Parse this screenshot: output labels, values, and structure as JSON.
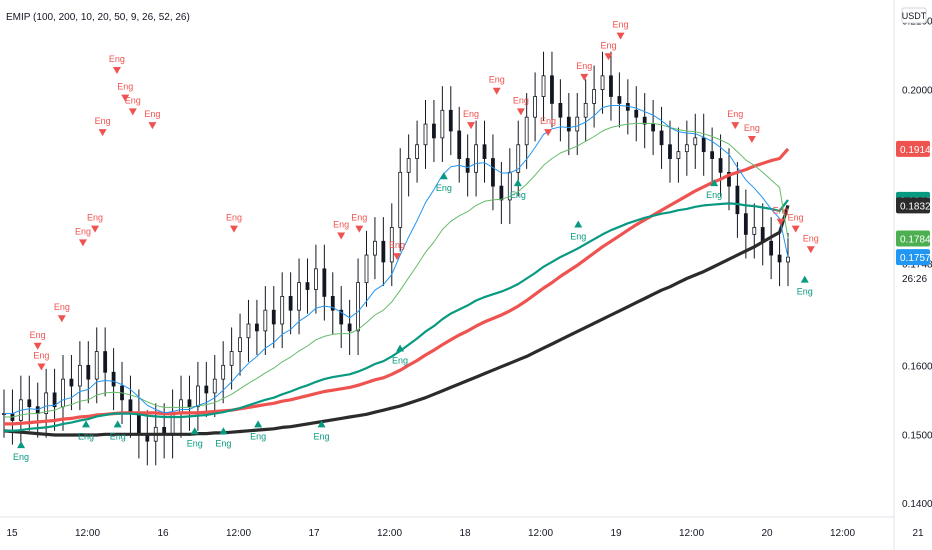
{
  "header": {
    "indicator": "EMIP (100, 200, 10, 20, 50, 9, 26, 52, 26)",
    "currency": "USDT"
  },
  "chart_data": {
    "type": "candlestick",
    "x_ticks": [
      "15",
      "12:00",
      "16",
      "12:00",
      "17",
      "12:00",
      "18",
      "12:00",
      "19",
      "12:00",
      "20",
      "12:00",
      "21"
    ],
    "y_ticks": [
      0.21,
      0.2,
      0.16,
      0.15,
      0.14
    ],
    "y_tick_labels": [
      "0.2100",
      "0.2000",
      "0.1600",
      "0.1500",
      "0.1400"
    ],
    "ylim": [
      0.138,
      0.213
    ],
    "price_badges": [
      {
        "label": "0.1914",
        "value": 0.1914,
        "color": "#ef5350"
      },
      {
        "label": "0.1840",
        "value": 0.184,
        "color": "#089981"
      },
      {
        "label": "0.1832",
        "value": 0.1832,
        "color": "#2b2b2b"
      },
      {
        "label": "0.1784",
        "value": 0.1784,
        "color": "#4caf50"
      },
      {
        "label": "0.1757",
        "value": 0.1757,
        "color": "#2196f3"
      }
    ],
    "extra_axis_labels": [
      {
        "label": "0.1748",
        "value": 0.1748
      },
      {
        "label": "26:26",
        "value": 0.1727
      }
    ],
    "signal_label": "Eng",
    "series": {
      "close": [
        0.153,
        0.152,
        0.155,
        0.154,
        0.153,
        0.156,
        0.154,
        0.158,
        0.157,
        0.16,
        0.158,
        0.162,
        0.159,
        0.157,
        0.155,
        0.153,
        0.15,
        0.149,
        0.151,
        0.15,
        0.153,
        0.155,
        0.154,
        0.157,
        0.156,
        0.158,
        0.16,
        0.162,
        0.164,
        0.166,
        0.165,
        0.168,
        0.166,
        0.17,
        0.168,
        0.172,
        0.171,
        0.174,
        0.17,
        0.168,
        0.166,
        0.165,
        0.172,
        0.176,
        0.178,
        0.175,
        0.18,
        0.188,
        0.19,
        0.192,
        0.195,
        0.193,
        0.197,
        0.194,
        0.19,
        0.188,
        0.192,
        0.19,
        0.186,
        0.184,
        0.188,
        0.192,
        0.196,
        0.199,
        0.202,
        0.198,
        0.196,
        0.194,
        0.196,
        0.198,
        0.2,
        0.202,
        0.199,
        0.198,
        0.197,
        0.196,
        0.195,
        0.194,
        0.192,
        0.19,
        0.191,
        0.192,
        0.193,
        0.191,
        0.19,
        0.188,
        0.186,
        0.182,
        0.179,
        0.18,
        0.178,
        0.176,
        0.175,
        0.1757
      ],
      "ema10": [
        0.153,
        0.153,
        0.1535,
        0.1537,
        0.1536,
        0.1541,
        0.1542,
        0.155,
        0.1553,
        0.1562,
        0.1565,
        0.1576,
        0.1578,
        0.1577,
        0.1572,
        0.1565,
        0.1554,
        0.1542,
        0.1536,
        0.1531,
        0.1533,
        0.1536,
        0.1536,
        0.1542,
        0.1546,
        0.1553,
        0.1564,
        0.1576,
        0.159,
        0.1603,
        0.1613,
        0.1625,
        0.1633,
        0.1645,
        0.1652,
        0.1664,
        0.1672,
        0.1683,
        0.1686,
        0.1684,
        0.1677,
        0.1669,
        0.1678,
        0.1693,
        0.1709,
        0.1717,
        0.1732,
        0.176,
        0.1786,
        0.181,
        0.1836,
        0.1855,
        0.1876,
        0.1888,
        0.189,
        0.1887,
        0.1893,
        0.1894,
        0.1887,
        0.1879,
        0.1879,
        0.1885,
        0.1899,
        0.1916,
        0.1935,
        0.1943,
        0.1946,
        0.1945,
        0.1947,
        0.1953,
        0.1962,
        0.1974,
        0.1977,
        0.1977,
        0.1976,
        0.1973,
        0.1968,
        0.1963,
        0.1955,
        0.1945,
        0.1939,
        0.1937,
        0.1936,
        0.1931,
        0.1925,
        0.1916,
        0.1906,
        0.1887,
        0.1869,
        0.1857,
        0.1843,
        0.1827,
        0.1813,
        0.1757
      ],
      "ema20": [
        0.1525,
        0.1525,
        0.1528,
        0.153,
        0.153,
        0.1533,
        0.1535,
        0.154,
        0.1543,
        0.1548,
        0.155,
        0.1557,
        0.156,
        0.1561,
        0.156,
        0.1557,
        0.1553,
        0.1547,
        0.1542,
        0.1539,
        0.1539,
        0.1539,
        0.1539,
        0.1541,
        0.1543,
        0.1546,
        0.1552,
        0.1558,
        0.1566,
        0.1574,
        0.1581,
        0.1589,
        0.1596,
        0.1605,
        0.1612,
        0.1621,
        0.1628,
        0.1637,
        0.1642,
        0.1645,
        0.1646,
        0.1646,
        0.1652,
        0.1662,
        0.1673,
        0.168,
        0.1692,
        0.1709,
        0.1727,
        0.1745,
        0.1764,
        0.1779,
        0.1797,
        0.1809,
        0.1817,
        0.1823,
        0.1832,
        0.1838,
        0.184,
        0.1841,
        0.1845,
        0.1852,
        0.1863,
        0.1876,
        0.189,
        0.19,
        0.1908,
        0.1913,
        0.1918,
        0.1925,
        0.1932,
        0.194,
        0.1945,
        0.1948,
        0.195,
        0.1951,
        0.1951,
        0.1951,
        0.1949,
        0.1945,
        0.1942,
        0.194,
        0.1939,
        0.1936,
        0.1932,
        0.1927,
        0.1921,
        0.191,
        0.1898,
        0.189,
        0.188,
        0.1869,
        0.1858,
        0.1784
      ],
      "ema50": [
        0.1505,
        0.1505,
        0.1506,
        0.1508,
        0.1509,
        0.151,
        0.1512,
        0.1515,
        0.1517,
        0.152,
        0.1522,
        0.1526,
        0.1528,
        0.153,
        0.153,
        0.153,
        0.1529,
        0.1527,
        0.1526,
        0.1525,
        0.1525,
        0.1525,
        0.1526,
        0.1527,
        0.1528,
        0.153,
        0.1532,
        0.1535,
        0.1538,
        0.1542,
        0.1546,
        0.155,
        0.1553,
        0.1558,
        0.1562,
        0.1567,
        0.1571,
        0.1576,
        0.158,
        0.1583,
        0.1585,
        0.1587,
        0.1591,
        0.1596,
        0.1602,
        0.1606,
        0.1613,
        0.1621,
        0.163,
        0.1639,
        0.1649,
        0.1657,
        0.1667,
        0.1675,
        0.1681,
        0.1687,
        0.1694,
        0.1699,
        0.1703,
        0.1707,
        0.1712,
        0.1718,
        0.1726,
        0.1734,
        0.1743,
        0.175,
        0.1757,
        0.1763,
        0.1769,
        0.1776,
        0.1783,
        0.179,
        0.1796,
        0.1801,
        0.1806,
        0.181,
        0.1814,
        0.1817,
        0.182,
        0.1822,
        0.1825,
        0.1827,
        0.183,
        0.1832,
        0.1833,
        0.1834,
        0.1835,
        0.1834,
        0.1832,
        0.1831,
        0.1829,
        0.1827,
        0.1824,
        0.184
      ],
      "ema100": [
        0.1515,
        0.1515,
        0.1516,
        0.1517,
        0.1518,
        0.1519,
        0.152,
        0.1522,
        0.1523,
        0.1525,
        0.1526,
        0.1528,
        0.1529,
        0.153,
        0.1531,
        0.1531,
        0.1531,
        0.1531,
        0.1531,
        0.153,
        0.153,
        0.1531,
        0.1531,
        0.1531,
        0.1532,
        0.1533,
        0.1534,
        0.1535,
        0.1537,
        0.1539,
        0.1541,
        0.1543,
        0.1545,
        0.1548,
        0.155,
        0.1553,
        0.1556,
        0.1559,
        0.1562,
        0.1564,
        0.1566,
        0.1568,
        0.1571,
        0.1575,
        0.1579,
        0.1582,
        0.1587,
        0.1593,
        0.16,
        0.1607,
        0.1615,
        0.1622,
        0.163,
        0.1637,
        0.1644,
        0.165,
        0.1657,
        0.1663,
        0.1668,
        0.1673,
        0.1679,
        0.1686,
        0.1694,
        0.1703,
        0.1712,
        0.172,
        0.1729,
        0.1737,
        0.1745,
        0.1754,
        0.1763,
        0.1772,
        0.178,
        0.1788,
        0.1796,
        0.1804,
        0.1811,
        0.1818,
        0.1825,
        0.1832,
        0.1839,
        0.1846,
        0.1853,
        0.1859,
        0.1865,
        0.187,
        0.1876,
        0.188,
        0.1884,
        0.1889,
        0.1893,
        0.1897,
        0.19,
        0.1914
      ],
      "ema200": [
        0.1505,
        0.1504,
        0.1503,
        0.1502,
        0.1501,
        0.15,
        0.1499,
        0.1499,
        0.1499,
        0.1499,
        0.1499,
        0.1499,
        0.15,
        0.15,
        0.15,
        0.15,
        0.15,
        0.15,
        0.15,
        0.15,
        0.15,
        0.15,
        0.15,
        0.1501,
        0.1501,
        0.1502,
        0.1502,
        0.1503,
        0.1504,
        0.1505,
        0.1506,
        0.1507,
        0.1508,
        0.151,
        0.1511,
        0.1513,
        0.1515,
        0.1517,
        0.1519,
        0.1521,
        0.1523,
        0.1525,
        0.1527,
        0.1529,
        0.1532,
        0.1535,
        0.1538,
        0.1541,
        0.1545,
        0.1549,
        0.1553,
        0.1558,
        0.1563,
        0.1568,
        0.1573,
        0.1578,
        0.1583,
        0.1588,
        0.1593,
        0.1598,
        0.1603,
        0.1608,
        0.1613,
        0.1619,
        0.1625,
        0.1631,
        0.1637,
        0.1643,
        0.1649,
        0.1655,
        0.1661,
        0.1667,
        0.1673,
        0.1679,
        0.1685,
        0.1691,
        0.1697,
        0.1703,
        0.1709,
        0.1714,
        0.172,
        0.1726,
        0.1731,
        0.1736,
        0.1742,
        0.1748,
        0.1754,
        0.176,
        0.1766,
        0.1772,
        0.1779,
        0.1786,
        0.1793,
        0.1832
      ]
    },
    "signals_bear": [
      [
        0.17,
        0.164,
        "Eng"
      ],
      [
        0.195,
        0.161,
        "Eng"
      ],
      [
        0.33,
        0.168,
        "Eng"
      ],
      [
        0.47,
        0.179,
        "Eng"
      ],
      [
        0.55,
        0.181,
        "Eng"
      ],
      [
        0.6,
        0.195,
        "Eng"
      ],
      [
        0.695,
        0.204,
        "Eng"
      ],
      [
        0.75,
        0.2,
        "Eng"
      ],
      [
        0.8,
        0.198,
        "Eng"
      ],
      [
        0.93,
        0.196,
        "Eng"
      ],
      [
        1.47,
        0.181,
        "Eng"
      ],
      [
        2.18,
        0.18,
        "Eng"
      ],
      [
        2.3,
        0.181,
        "Eng"
      ],
      [
        2.55,
        0.177,
        "Eng"
      ],
      [
        3.04,
        0.196,
        "Eng"
      ],
      [
        3.21,
        0.201,
        "Eng"
      ],
      [
        3.37,
        0.198,
        "Eng"
      ],
      [
        3.55,
        0.195,
        "Eng"
      ],
      [
        3.79,
        0.203,
        "Eng"
      ],
      [
        3.95,
        0.206,
        "Eng"
      ],
      [
        4.03,
        0.209,
        "Eng"
      ],
      [
        4.79,
        0.196,
        "Eng"
      ],
      [
        4.9,
        0.194,
        "Eng"
      ],
      [
        5.09,
        0.182,
        "Eng"
      ],
      [
        5.19,
        0.181,
        "Eng"
      ],
      [
        5.29,
        0.178,
        "Eng"
      ]
    ],
    "signals_bull": [
      [
        0.06,
        0.148,
        "Eng"
      ],
      [
        0.49,
        0.151,
        "Eng"
      ],
      [
        0.7,
        0.151,
        "Eng"
      ],
      [
        1.21,
        0.15,
        "Eng"
      ],
      [
        1.4,
        0.15,
        "Eng"
      ],
      [
        1.63,
        0.151,
        "Eng"
      ],
      [
        2.05,
        0.151,
        "Eng"
      ],
      [
        2.57,
        0.162,
        "Eng"
      ],
      [
        2.86,
        0.187,
        "Eng"
      ],
      [
        3.35,
        0.186,
        "Eng"
      ],
      [
        3.75,
        0.18,
        "Eng"
      ],
      [
        4.65,
        0.186,
        "Eng"
      ],
      [
        5.25,
        0.172,
        "Eng"
      ]
    ]
  }
}
